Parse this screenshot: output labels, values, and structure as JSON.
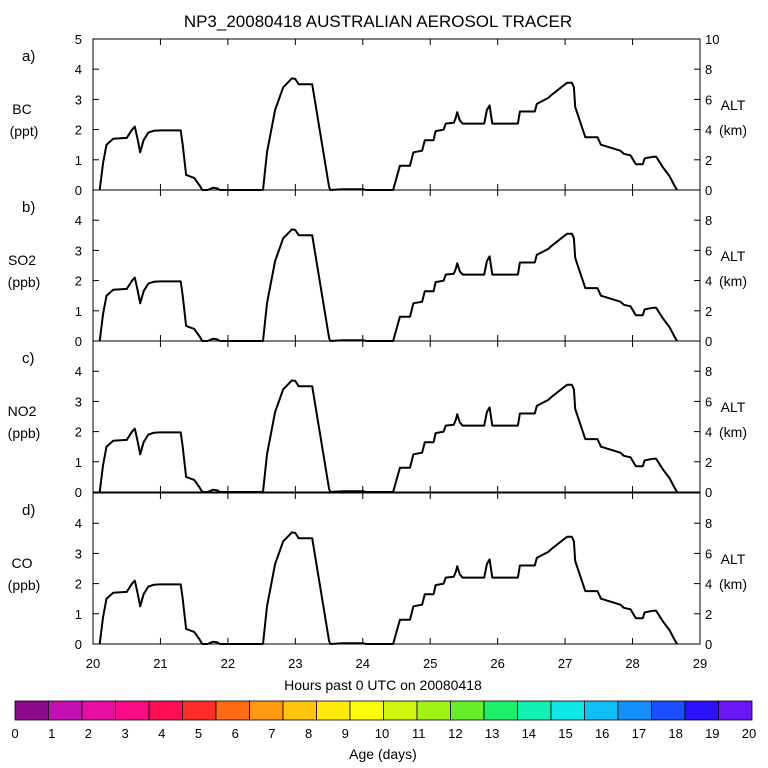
{
  "chart_data": {
    "type": "line",
    "title": "NP3_20080418 AUSTRALIAN AEROSOL TRACER",
    "xlabel": "Hours past 0 UTC on 20080418",
    "xlim": [
      20,
      29
    ],
    "x_ticks": [
      "20",
      "21",
      "22",
      "23",
      "24",
      "25",
      "26",
      "27",
      "28",
      "29"
    ],
    "panels": [
      {
        "letter": "a)",
        "species": "BC",
        "units": "(ppt)",
        "ylim": [
          0,
          5
        ],
        "y_ticks": [
          "0",
          "1",
          "2",
          "3",
          "4",
          "5"
        ],
        "y2_ticks": [
          "0",
          "2",
          "4",
          "6",
          "8",
          "10"
        ],
        "y2_label": "ALT",
        "y2_units": "(km)"
      },
      {
        "letter": "b)",
        "species": "SO2",
        "units": "(ppb)",
        "ylim": [
          0,
          5
        ],
        "y_ticks": [
          "0",
          "1",
          "2",
          "3",
          "4"
        ],
        "y2_ticks": [
          "0",
          "2",
          "4",
          "6",
          "8"
        ],
        "y2_label": "ALT",
        "y2_units": "(km)"
      },
      {
        "letter": "c)",
        "species": "NO2",
        "units": "(ppb)",
        "ylim": [
          0,
          5
        ],
        "y_ticks": [
          "0",
          "1",
          "2",
          "3",
          "4"
        ],
        "y2_ticks": [
          "0",
          "2",
          "4",
          "6",
          "8"
        ],
        "y2_label": "ALT",
        "y2_units": "(km)"
      },
      {
        "letter": "d)",
        "species": "CO",
        "units": "(ppb)",
        "ylim": [
          0,
          5
        ],
        "y_ticks": [
          "0",
          "1",
          "2",
          "3",
          "4"
        ],
        "y2_ticks": [
          "0",
          "2",
          "4",
          "6",
          "8"
        ],
        "y2_label": "ALT",
        "y2_units": "(km)"
      }
    ],
    "altitude_series": {
      "name": "ALT (km)",
      "x": [
        20.1,
        20.15,
        20.2,
        20.3,
        20.5,
        20.58,
        20.62,
        20.66,
        20.7,
        20.75,
        20.82,
        20.9,
        21.0,
        21.3,
        21.33,
        21.38,
        21.5,
        21.58,
        21.62,
        21.7,
        21.78,
        21.85,
        21.88,
        22.3,
        22.4,
        22.52,
        22.58,
        22.7,
        22.82,
        22.95,
        23.0,
        23.05,
        23.25,
        23.5,
        23.52,
        23.7,
        24.0,
        24.05,
        24.45,
        24.55,
        24.7,
        24.75,
        24.88,
        24.92,
        25.05,
        25.08,
        25.2,
        25.23,
        25.35,
        25.38,
        25.4,
        25.44,
        25.48,
        25.52,
        25.8,
        25.84,
        25.88,
        25.92,
        26.3,
        26.33,
        26.55,
        26.58,
        26.75,
        26.8,
        26.97,
        27.03,
        27.1,
        27.13,
        27.15,
        27.3,
        27.48,
        27.53,
        27.82,
        27.87,
        27.97,
        28.05,
        28.15,
        28.18,
        28.3,
        28.35,
        28.45,
        28.55,
        28.62,
        28.66
      ],
      "y": [
        0.0,
        1.8,
        3.0,
        3.4,
        3.45,
        4.0,
        4.2,
        3.4,
        2.5,
        3.3,
        3.8,
        3.92,
        3.95,
        3.95,
        3.0,
        1.0,
        0.8,
        0.3,
        0.0,
        0.0,
        0.15,
        0.1,
        0.0,
        0.0,
        0.0,
        0.0,
        2.5,
        5.3,
        6.8,
        7.4,
        7.35,
        7.0,
        7.0,
        0.2,
        0.0,
        0.05,
        0.05,
        0.0,
        0.0,
        1.6,
        1.6,
        2.5,
        2.6,
        3.3,
        3.3,
        3.9,
        4.0,
        4.4,
        4.45,
        4.8,
        5.15,
        4.6,
        4.4,
        4.4,
        4.4,
        5.3,
        5.6,
        4.4,
        4.4,
        5.2,
        5.2,
        5.7,
        6.1,
        6.3,
        6.9,
        7.1,
        7.1,
        6.8,
        5.5,
        3.5,
        3.5,
        3.0,
        2.6,
        2.4,
        2.3,
        1.7,
        1.7,
        2.1,
        2.2,
        2.2,
        1.5,
        0.9,
        0.3,
        0.0
      ]
    },
    "colorbar": {
      "label": "Age (days)",
      "ticks": [
        "0",
        "1",
        "2",
        "3",
        "4",
        "5",
        "6",
        "7",
        "8",
        "9",
        "10",
        "11",
        "12",
        "13",
        "14",
        "15",
        "16",
        "17",
        "18",
        "19",
        "20"
      ],
      "colors": [
        "#8b0a8b",
        "#c310b4",
        "#e70ea2",
        "#f90b86",
        "#ff0d55",
        "#ff2d26",
        "#ff6a12",
        "#ff9a10",
        "#ffc40e",
        "#ffe80d",
        "#fbfd0e",
        "#d0f70f",
        "#9ff214",
        "#66f02a",
        "#1def6c",
        "#12f0b2",
        "#10e7e7",
        "#10bff5",
        "#1590fa",
        "#1b4efd",
        "#2a12fd",
        "#6a16f6"
      ]
    }
  }
}
